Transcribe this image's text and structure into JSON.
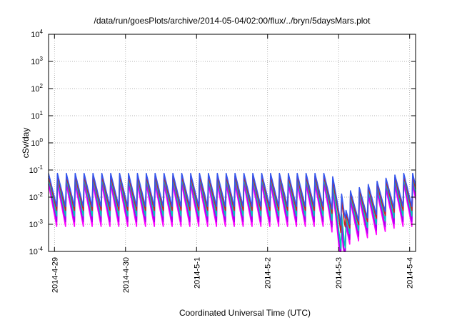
{
  "chart_data": {
    "type": "line",
    "title": "/data/run/goesPlots/archive/2014-05-04/02:00/flux/../bryn/5daysMars.plot",
    "xlabel": "Coordinated Universal Time (UTC)",
    "ylabel": "cSv/day",
    "yscale": "log",
    "ylim": [
      0.0001,
      10000
    ],
    "xlim": [
      "2014-04-28 22:00",
      "2014-05-04 02:00"
    ],
    "grid": true,
    "y_ticks": [
      {
        "base": "10",
        "exp": "-4",
        "value": 0.0001
      },
      {
        "base": "10",
        "exp": "-3",
        "value": 0.001
      },
      {
        "base": "10",
        "exp": "-2",
        "value": 0.01
      },
      {
        "base": "10",
        "exp": "-1",
        "value": 0.1
      },
      {
        "base": "10",
        "exp": "0",
        "value": 1
      },
      {
        "base": "10",
        "exp": "1",
        "value": 10
      },
      {
        "base": "10",
        "exp": "2",
        "value": 100
      },
      {
        "base": "10",
        "exp": "3",
        "value": 1000
      },
      {
        "base": "10",
        "exp": "4",
        "value": 10000
      }
    ],
    "x_ticks": [
      {
        "label": "2014-4-29",
        "value": "2014-04-29 00:00"
      },
      {
        "label": "2014-4-30",
        "value": "2014-04-30 00:00"
      },
      {
        "label": "2014-5-1",
        "value": "2014-05-01 00:00"
      },
      {
        "label": "2014-5-2",
        "value": "2014-05-02 00:00"
      },
      {
        "label": "2014-5-3",
        "value": "2014-05-03 00:00"
      },
      {
        "label": "2014-5-4",
        "value": "2014-05-04 00:00"
      }
    ],
    "sawtooth_period_hours": 3,
    "dip": {
      "start": "2014-05-02 20:00",
      "minimum": "2014-05-03 02:00",
      "recovery": "2014-05-03 02:30"
    },
    "series": [
      {
        "color": "#ff00ff",
        "peak": 0.03,
        "trough": 0.0006
      },
      {
        "color": "#aa00ee",
        "peak": 0.04,
        "trough": 0.0009
      },
      {
        "color": "#00c8b4",
        "peak": 0.05,
        "trough": 0.0015
      },
      {
        "color": "#cc2222",
        "peak": 0.06,
        "trough": 0.0025
      },
      {
        "color": "#3355ee",
        "peak": 0.075,
        "trough": 0.0035
      }
    ]
  }
}
